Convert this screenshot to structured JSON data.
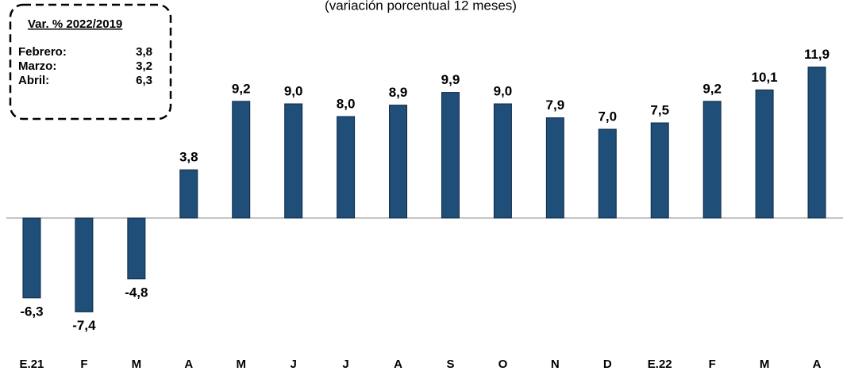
{
  "chart_data": {
    "type": "bar",
    "subtitle": "(variación porcentual 12 meses)",
    "categories": [
      "E.21",
      "F",
      "M",
      "A",
      "M",
      "J",
      "J",
      "A",
      "S",
      "O",
      "N",
      "D",
      "E.22",
      "F",
      "M",
      "A"
    ],
    "values": [
      -6.3,
      -7.4,
      -4.8,
      3.8,
      9.2,
      9.0,
      8.0,
      8.9,
      9.9,
      9.0,
      7.9,
      7.0,
      7.5,
      9.2,
      10.1,
      11.9
    ],
    "value_labels": [
      "-6,3",
      "-7,4",
      "-4,8",
      "3,8",
      "9,2",
      "9,0",
      "8,0",
      "8,9",
      "9,9",
      "9,0",
      "7,9",
      "7,0",
      "7,5",
      "9,2",
      "10,1",
      "11,9"
    ],
    "color": "#1f4e79",
    "ylim": [
      -10,
      13
    ],
    "annotation": {
      "title": "Var. % 2022/2019",
      "rows": [
        [
          "Febrero:",
          "3,8"
        ],
        [
          "Marzo:",
          "3,2"
        ],
        [
          "Abril:",
          "6,3"
        ]
      ]
    }
  }
}
